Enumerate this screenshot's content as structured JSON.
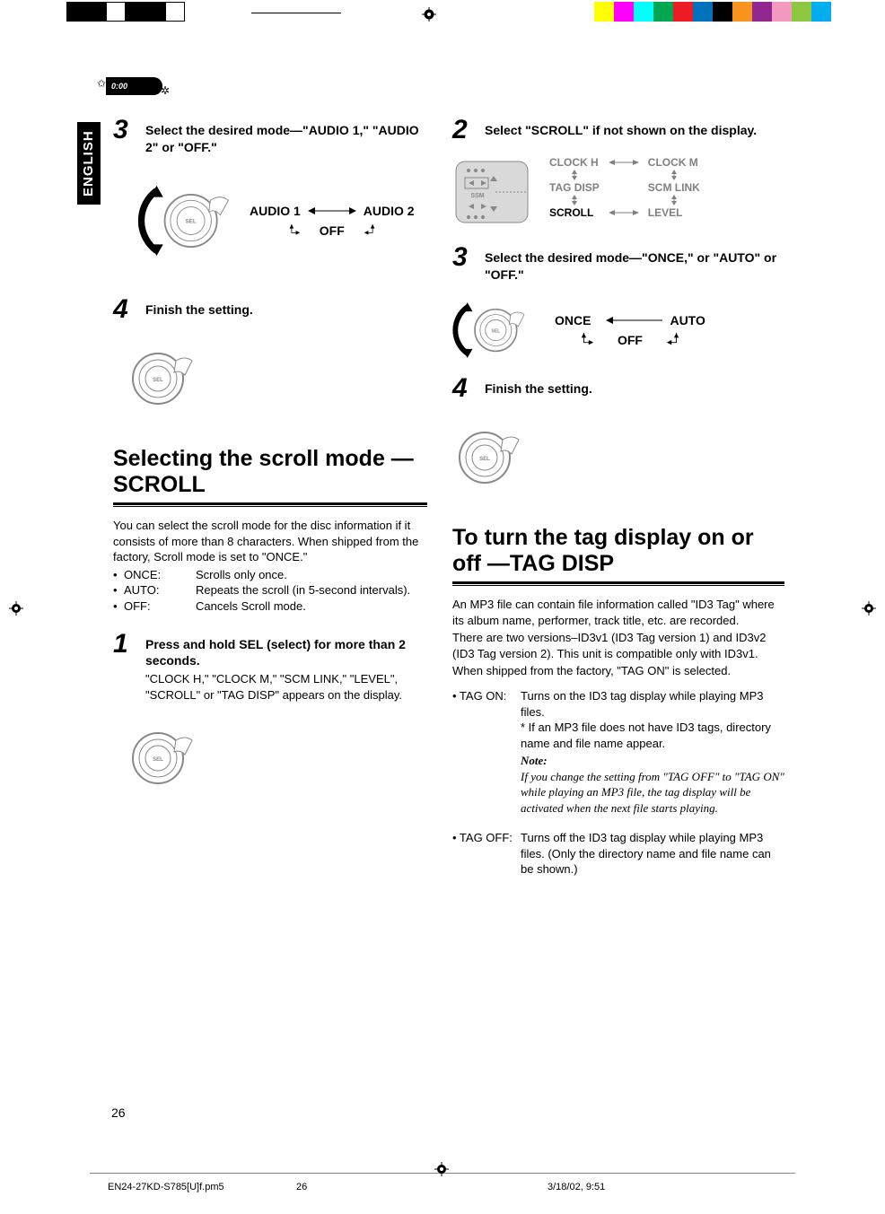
{
  "header": {
    "clock": "0:00",
    "language_tab": "ENGLISH"
  },
  "reg_colors_left": [
    "#000000",
    "#000000",
    "#ffffff",
    "#000000",
    "#000000",
    "#ffffff"
  ],
  "reg_colors_right": [
    "#ffff00",
    "#ff00ff",
    "#00ffff",
    "#00a651",
    "#ed1c24",
    "#0072bc",
    "#000000",
    "#f7941d",
    "#92278f",
    "#f49ac1",
    "#8dc63f",
    "#00aeef"
  ],
  "left": {
    "step3": {
      "num": "3",
      "title": "Select the desired mode—\"AUDIO 1,\" \"AUDIO 2\" or \"OFF.\"",
      "options": {
        "a": "AUDIO 1",
        "b": "AUDIO 2",
        "c": "OFF"
      }
    },
    "step4": {
      "num": "4",
      "title": "Finish the setting."
    },
    "section_title": "Selecting the scroll mode —SCROLL",
    "intro": "You can select the scroll mode for the disc information if it consists of more than 8 characters. When shipped from the factory, Scroll mode is set to \"ONCE.\"",
    "modes": [
      {
        "k": "ONCE:",
        "v": "Scrolls only once."
      },
      {
        "k": "AUTO:",
        "v": "Repeats the scroll (in 5-second intervals)."
      },
      {
        "k": "OFF:",
        "v": "Cancels Scroll mode."
      }
    ],
    "step1": {
      "num": "1",
      "title": "Press and hold SEL (select) for more than 2 seconds.",
      "sub": "\"CLOCK H,\" \"CLOCK M,\" \"SCM LINK,\" \"LEVEL\", \"SCROLL\" or \"TAG DISP\" appears on the display."
    }
  },
  "right": {
    "step2": {
      "num": "2",
      "title": "Select \"SCROLL\" if not shown on the display.",
      "psm": {
        "r1a": "CLOCK H",
        "r1b": "CLOCK M",
        "r2a": "TAG DISP",
        "r2b": "SCM LINK",
        "r3a": "SCROLL",
        "r3b": "LEVEL"
      }
    },
    "step3": {
      "num": "3",
      "title": "Select the desired mode—\"ONCE,\" or \"AUTO\" or \"OFF.\"",
      "options": {
        "a": "ONCE",
        "b": "AUTO",
        "c": "OFF"
      }
    },
    "step4": {
      "num": "4",
      "title": "Finish the setting."
    },
    "section_title": "To turn the tag display on or off —TAG DISP",
    "p1": "An MP3 file can contain file information called \"ID3 Tag\" where its album name, performer, track title, etc. are recorded.",
    "p2": "There are two versions–ID3v1 (ID3 Tag version 1) and ID3v2 (ID3 Tag version 2). This unit is compatible only with ID3v1.",
    "p3": "When shipped from the factory, \"TAG ON\" is selected.",
    "tag_on": {
      "key": "• TAG ON:",
      "l1": "Turns on the ID3 tag display while playing MP3 files.",
      "l2": "* If an MP3 file does not have ID3 tags, directory name and file name appear.",
      "note_lbl": "Note:",
      "note": "If you change the setting from \"TAG OFF\" to \"TAG ON\" while playing an MP3 file, the tag display will be activated when the next file starts playing."
    },
    "tag_off": {
      "key": "• TAG OFF:",
      "l1": "Turns off the ID3 tag display while playing MP3 files. (Only the directory name and file name can be shown.)"
    }
  },
  "page_number": "26",
  "footer": {
    "file": "EN24-27KD-S785[U]f.pm5",
    "page": "26",
    "date": "3/18/02, 9:51"
  }
}
